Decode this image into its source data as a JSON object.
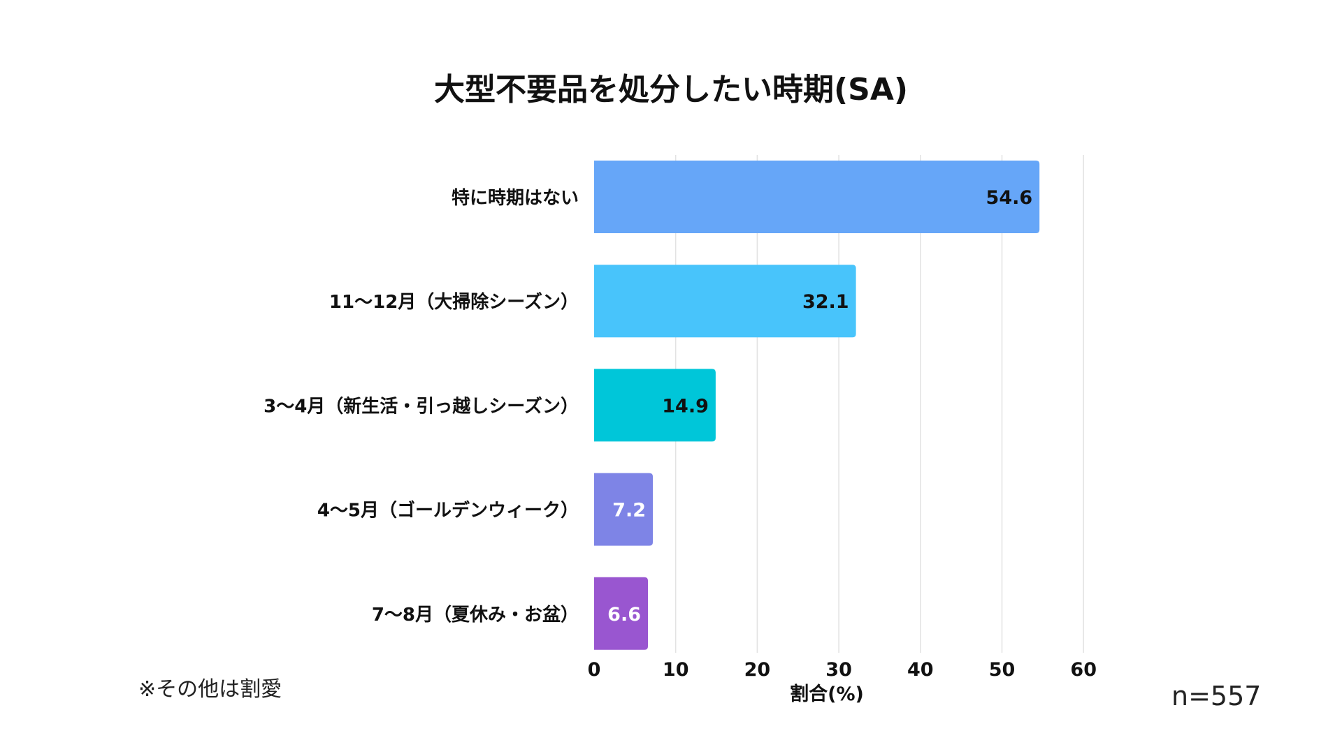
{
  "chart_data": {
    "type": "bar",
    "orientation": "horizontal",
    "title": "大型不要品を処分したい時期(SA)",
    "xlabel": "割合(%)",
    "ylabel": "",
    "xlim": [
      0,
      60
    ],
    "xticks": [
      0,
      10,
      20,
      30,
      40,
      50,
      60
    ],
    "grid": true,
    "categories": [
      "特に時期はない",
      "11〜12月（大掃除シーズン）",
      "3〜4月（新生活・引っ越しシーズン）",
      "4〜5月（ゴールデンウィーク）",
      "7〜8月（夏休み・お盆）"
    ],
    "values": [
      54.6,
      32.1,
      14.9,
      7.2,
      6.6
    ],
    "value_labels": [
      "54.6",
      "32.1",
      "14.9",
      "7.2",
      "6.6"
    ],
    "colors": [
      "#66a6f8",
      "#48c4fb",
      "#00c6d9",
      "#7e84e6",
      "#9956d0"
    ],
    "label_colors": [
      "#111111",
      "#111111",
      "#111111",
      "#ffffff",
      "#ffffff"
    ]
  },
  "note": "※その他は割愛",
  "sample_size": "n=557"
}
